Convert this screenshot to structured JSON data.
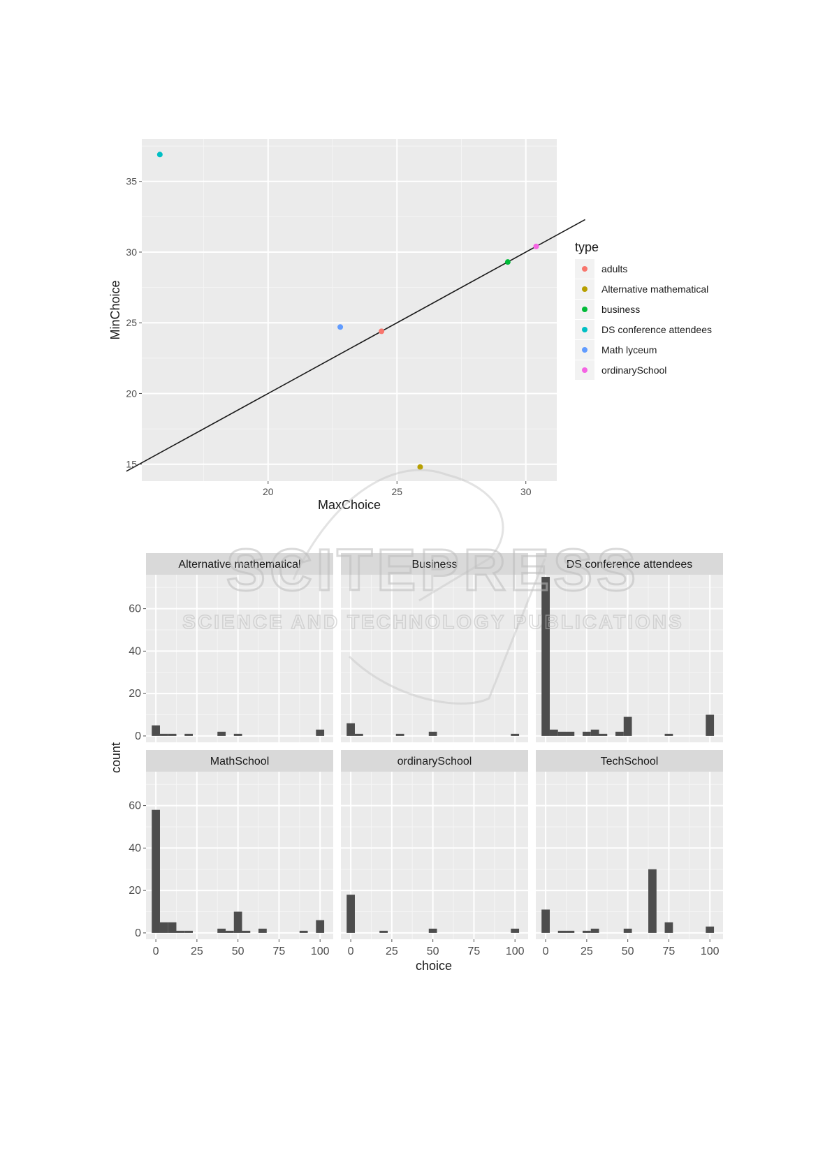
{
  "chart_data": [
    {
      "type": "scatter",
      "xlabel": "MaxChoice",
      "ylabel": "MinChoice",
      "xlim": [
        15.1,
        31.2
      ],
      "ylim": [
        13.8,
        38.0
      ],
      "xticks": [
        20,
        25,
        30
      ],
      "yticks": [
        15,
        20,
        25,
        30,
        35
      ],
      "grid": true,
      "reference_line": {
        "slope": 1,
        "intercept": 0
      },
      "legend": {
        "title": "type",
        "placement": "right"
      },
      "series": [
        {
          "name": "adults",
          "color": "#F8766D",
          "x": 24.4,
          "y": 24.4
        },
        {
          "name": "Alternative mathematical",
          "color": "#B79F00",
          "x": 25.9,
          "y": 14.8
        },
        {
          "name": "business",
          "color": "#00BA38",
          "x": 29.3,
          "y": 29.3
        },
        {
          "name": "DS conference attendees",
          "color": "#00BFC4",
          "x": 15.8,
          "y": 36.9
        },
        {
          "name": "Math lyceum",
          "color": "#619CFF",
          "x": 22.8,
          "y": 24.7
        },
        {
          "name": "ordinarySchool",
          "color": "#F564E3",
          "x": 30.4,
          "y": 30.4
        }
      ]
    },
    {
      "type": "bar",
      "subtype": "faceted-histogram",
      "xlabel": "choice",
      "ylabel": "count",
      "xticks": [
        0,
        25,
        50,
        75,
        100
      ],
      "yticks": [
        0,
        20,
        40,
        60
      ],
      "ylim": [
        0,
        76
      ],
      "bin_width": 5,
      "bar_color": "#4d4d4d",
      "grid": true,
      "facets": [
        {
          "name": "Alternative mathematical",
          "bins": [
            [
              0,
              5
            ],
            [
              5,
              1
            ],
            [
              10,
              1
            ],
            [
              20,
              1
            ],
            [
              40,
              2
            ],
            [
              50,
              1
            ],
            [
              100,
              3
            ]
          ]
        },
        {
          "name": "Business",
          "bins": [
            [
              0,
              6
            ],
            [
              5,
              1
            ],
            [
              30,
              1
            ],
            [
              50,
              2
            ],
            [
              100,
              1
            ]
          ]
        },
        {
          "name": "DS conference attendees",
          "bins": [
            [
              0,
              75
            ],
            [
              5,
              3
            ],
            [
              10,
              2
            ],
            [
              15,
              2
            ],
            [
              25,
              2
            ],
            [
              30,
              3
            ],
            [
              35,
              1
            ],
            [
              45,
              2
            ],
            [
              50,
              9
            ],
            [
              75,
              1
            ],
            [
              100,
              10
            ]
          ]
        },
        {
          "name": "MathSchool",
          "bins": [
            [
              0,
              58
            ],
            [
              5,
              5
            ],
            [
              10,
              5
            ],
            [
              15,
              1
            ],
            [
              20,
              1
            ],
            [
              40,
              2
            ],
            [
              45,
              1
            ],
            [
              50,
              10
            ],
            [
              55,
              1
            ],
            [
              65,
              2
            ],
            [
              90,
              1
            ],
            [
              100,
              6
            ]
          ]
        },
        {
          "name": "ordinarySchool",
          "bins": [
            [
              0,
              18
            ],
            [
              20,
              1
            ],
            [
              50,
              2
            ],
            [
              100,
              2
            ]
          ]
        },
        {
          "name": "TechSchool",
          "bins": [
            [
              0,
              11
            ],
            [
              10,
              1
            ],
            [
              15,
              1
            ],
            [
              25,
              1
            ],
            [
              30,
              2
            ],
            [
              50,
              2
            ],
            [
              65,
              30
            ],
            [
              75,
              5
            ],
            [
              100,
              3
            ]
          ]
        }
      ]
    }
  ],
  "watermark": {
    "line1": "SCITEPRESS",
    "line2": "SCIENCE AND TECHNOLOGY PUBLICATIONS"
  }
}
